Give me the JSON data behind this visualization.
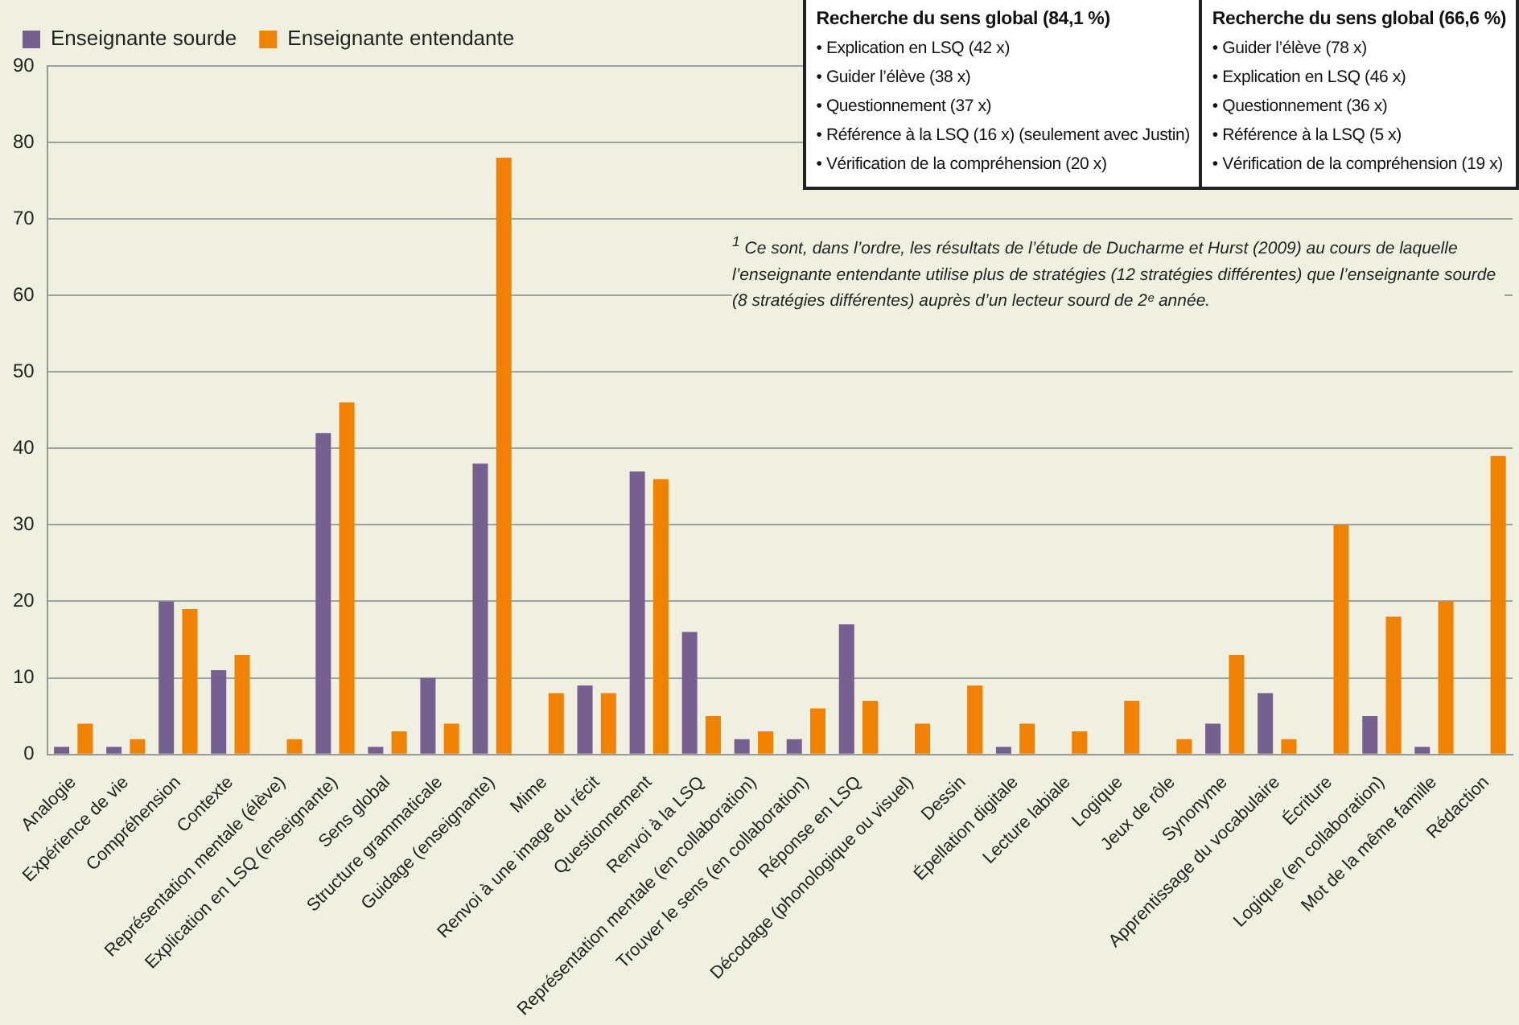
{
  "chart_data": {
    "type": "bar",
    "categories": [
      "Analogie",
      "Expérience de vie",
      "Compréhension",
      "Contexte",
      "Représentation mentale (élève)",
      "Explication en LSQ (enseignante)",
      "Sens global",
      "Structure grammaticale",
      "Guidage (enseignante)",
      "Mime",
      "Renvoi à une image du récit",
      "Questionnement",
      "Renvoi à la LSQ",
      "Représentation mentale (en collaboration)",
      "Trouver le sens (en collaboration)",
      "Réponse en LSQ",
      "Décodage (phonologique ou visuel)",
      "Dessin",
      "Épellation digitale",
      "Lecture labiale",
      "Logique",
      "Jeux de rôle",
      "Synonyme",
      "Apprentissage du vocabulaire",
      "Écriture",
      "Logique (en collaboration)",
      "Mot de la même famille",
      "Rédaction"
    ],
    "series": [
      {
        "name": "Enseignante sourde",
        "color": "#76608f",
        "values": [
          1,
          1,
          20,
          11,
          0,
          42,
          1,
          10,
          38,
          0,
          9,
          37,
          16,
          2,
          2,
          17,
          0,
          0,
          1,
          0,
          0,
          0,
          4,
          8,
          0,
          5,
          1,
          0
        ]
      },
      {
        "name": "Enseignante entendante",
        "color": "#ef8200",
        "values": [
          4,
          2,
          19,
          13,
          2,
          46,
          3,
          4,
          78,
          8,
          8,
          36,
          5,
          3,
          6,
          7,
          4,
          9,
          4,
          3,
          7,
          2,
          13,
          2,
          30,
          18,
          20,
          39
        ]
      }
    ],
    "ylim": [
      0,
      90
    ],
    "yticks": [
      0,
      10,
      20,
      30,
      40,
      50,
      60,
      70,
      80,
      90
    ],
    "grid": "y",
    "legend": "top left",
    "annotations": [
      "Recherche du sens global (84,1 %)\n• Explication en LSQ (42 x)\n• Guider l’élève (38 x)\n• Questionnement (37 x)\n• Référence à la LSQ (16 x)  (seulement avec Justin)\n• Vérification de la compréhension (20 x)",
      "Recherche du sens global (66,6 %)\n• Guider l’élève (78 x)\n• Explication en LSQ (46 x)\n• Questionnement (36 x)\n• Référence à la LSQ (5 x)\n• Vérification de la compréhension (19 x)",
      "$^{1}$ Ce sont, dans l’ordre, les résultats de l’étude de Ducharme et Hurst (2009) au cours de laquelle l’enseignante entendante utilise plus de stratégies (12 stratégies différentes) que l’enseignante sourde (8 stratégies différentes) auprès d’un lecteur sourd de 2ᵉ année."
    ]
  }
}
